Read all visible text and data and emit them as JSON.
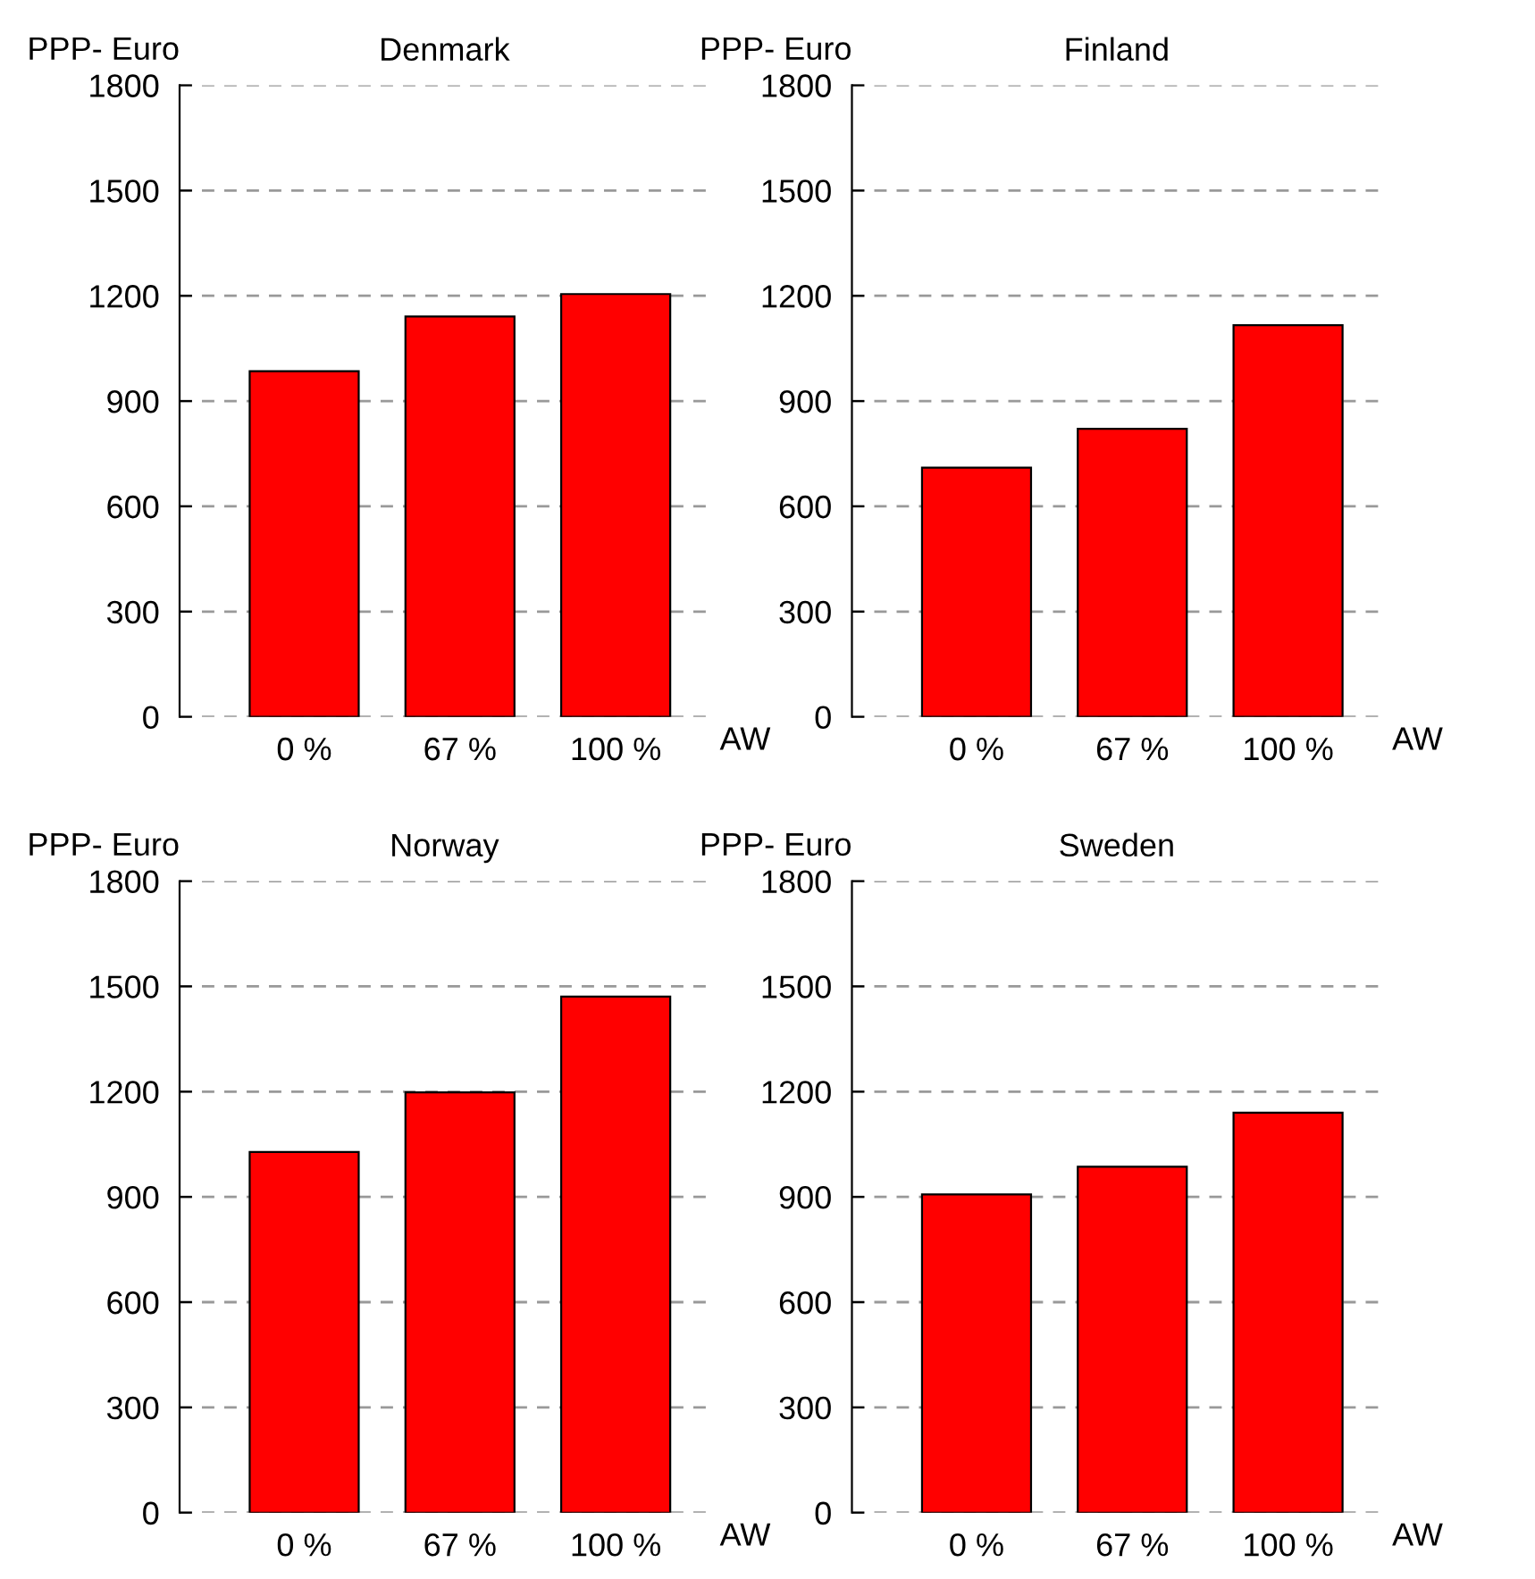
{
  "chart_data": [
    {
      "type": "bar",
      "title": "Denmark",
      "ylabel": "PPP- Euro",
      "xlabel": "AW",
      "categories": [
        "0 %",
        "67 %",
        "100 %"
      ],
      "values": [
        985,
        1141,
        1205
      ],
      "color": "#ff0000",
      "ylim": [
        0,
        1800
      ],
      "yticks": [
        0,
        300,
        600,
        900,
        1200,
        1500,
        1800
      ],
      "grid": "y"
    },
    {
      "type": "bar",
      "title": "Finland",
      "ylabel": "PPP- Euro",
      "xlabel": "AW",
      "categories": [
        "0 %",
        "67 %",
        "100 %"
      ],
      "values": [
        710,
        821,
        1116
      ],
      "color": "#ff0000",
      "ylim": [
        0,
        1800
      ],
      "yticks": [
        0,
        300,
        600,
        900,
        1200,
        1500,
        1800
      ],
      "grid": "y"
    },
    {
      "type": "bar",
      "title": "Norway",
      "ylabel": "PPP- Euro",
      "xlabel": "AW",
      "categories": [
        "0 %",
        "67 %",
        "100 %"
      ],
      "values": [
        1028,
        1198,
        1471
      ],
      "color": "#ff0000",
      "ylim": [
        0,
        1800
      ],
      "yticks": [
        0,
        300,
        600,
        900,
        1200,
        1500,
        1800
      ],
      "grid": "y"
    },
    {
      "type": "bar",
      "title": "Sweden",
      "ylabel": "PPP- Euro",
      "xlabel": "AW",
      "categories": [
        "0 %",
        "67 %",
        "100 %"
      ],
      "values": [
        907,
        986,
        1140
      ],
      "color": "#ff0000",
      "ylim": [
        0,
        1800
      ],
      "yticks": [
        0,
        300,
        600,
        900,
        1200,
        1500,
        1800
      ],
      "grid": "y"
    }
  ]
}
